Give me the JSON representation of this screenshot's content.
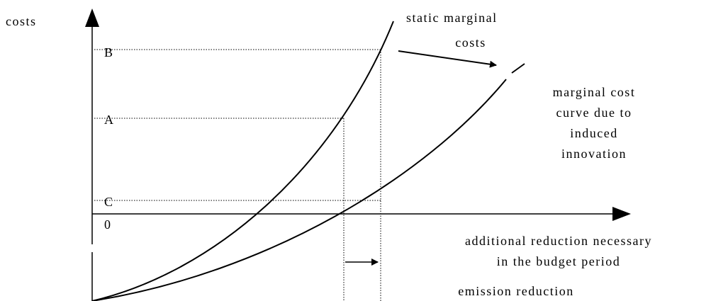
{
  "axes": {
    "y_label": "costs",
    "x_label": "emission reduction"
  },
  "levels": {
    "b": "B",
    "a": "A",
    "c": "C",
    "zero": "0"
  },
  "curves": {
    "static": [
      "static marginal",
      "costs"
    ],
    "induced": [
      "marginal cost",
      "curve due to",
      "induced",
      "innovation"
    ]
  },
  "annotation": [
    "additional reduction necessary",
    "in the budget period"
  ]
}
